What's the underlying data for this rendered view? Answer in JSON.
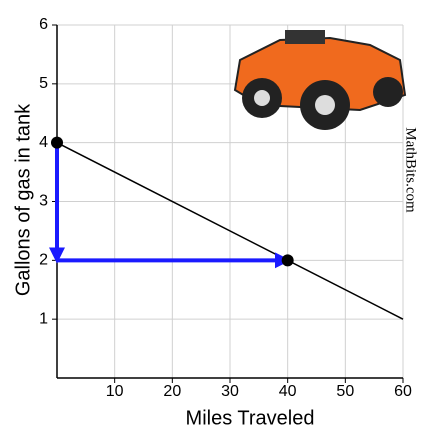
{
  "chart_data": {
    "type": "line",
    "x_label": "Miles Traveled",
    "y_label": "Gallons of gas in tank",
    "watermark": "MathBits.com",
    "xlim": [
      0,
      60
    ],
    "ylim": [
      0,
      6
    ],
    "xticks": [
      10,
      20,
      30,
      40,
      50,
      60
    ],
    "yticks": [
      1,
      2,
      3,
      4,
      5,
      6
    ],
    "grid": true,
    "series": [
      {
        "name": "line",
        "color": "#000000",
        "x": [
          0,
          60
        ],
        "values": [
          4,
          1
        ]
      }
    ],
    "points": {
      "color": "#000000",
      "x": [
        0,
        40
      ],
      "values": [
        4,
        2
      ]
    },
    "arrows": [
      {
        "color": "#1a1aff",
        "from": [
          0,
          4
        ],
        "to": [
          0,
          2
        ]
      },
      {
        "color": "#1a1aff",
        "from": [
          0,
          2
        ],
        "to": [
          40,
          2
        ]
      }
    ]
  }
}
